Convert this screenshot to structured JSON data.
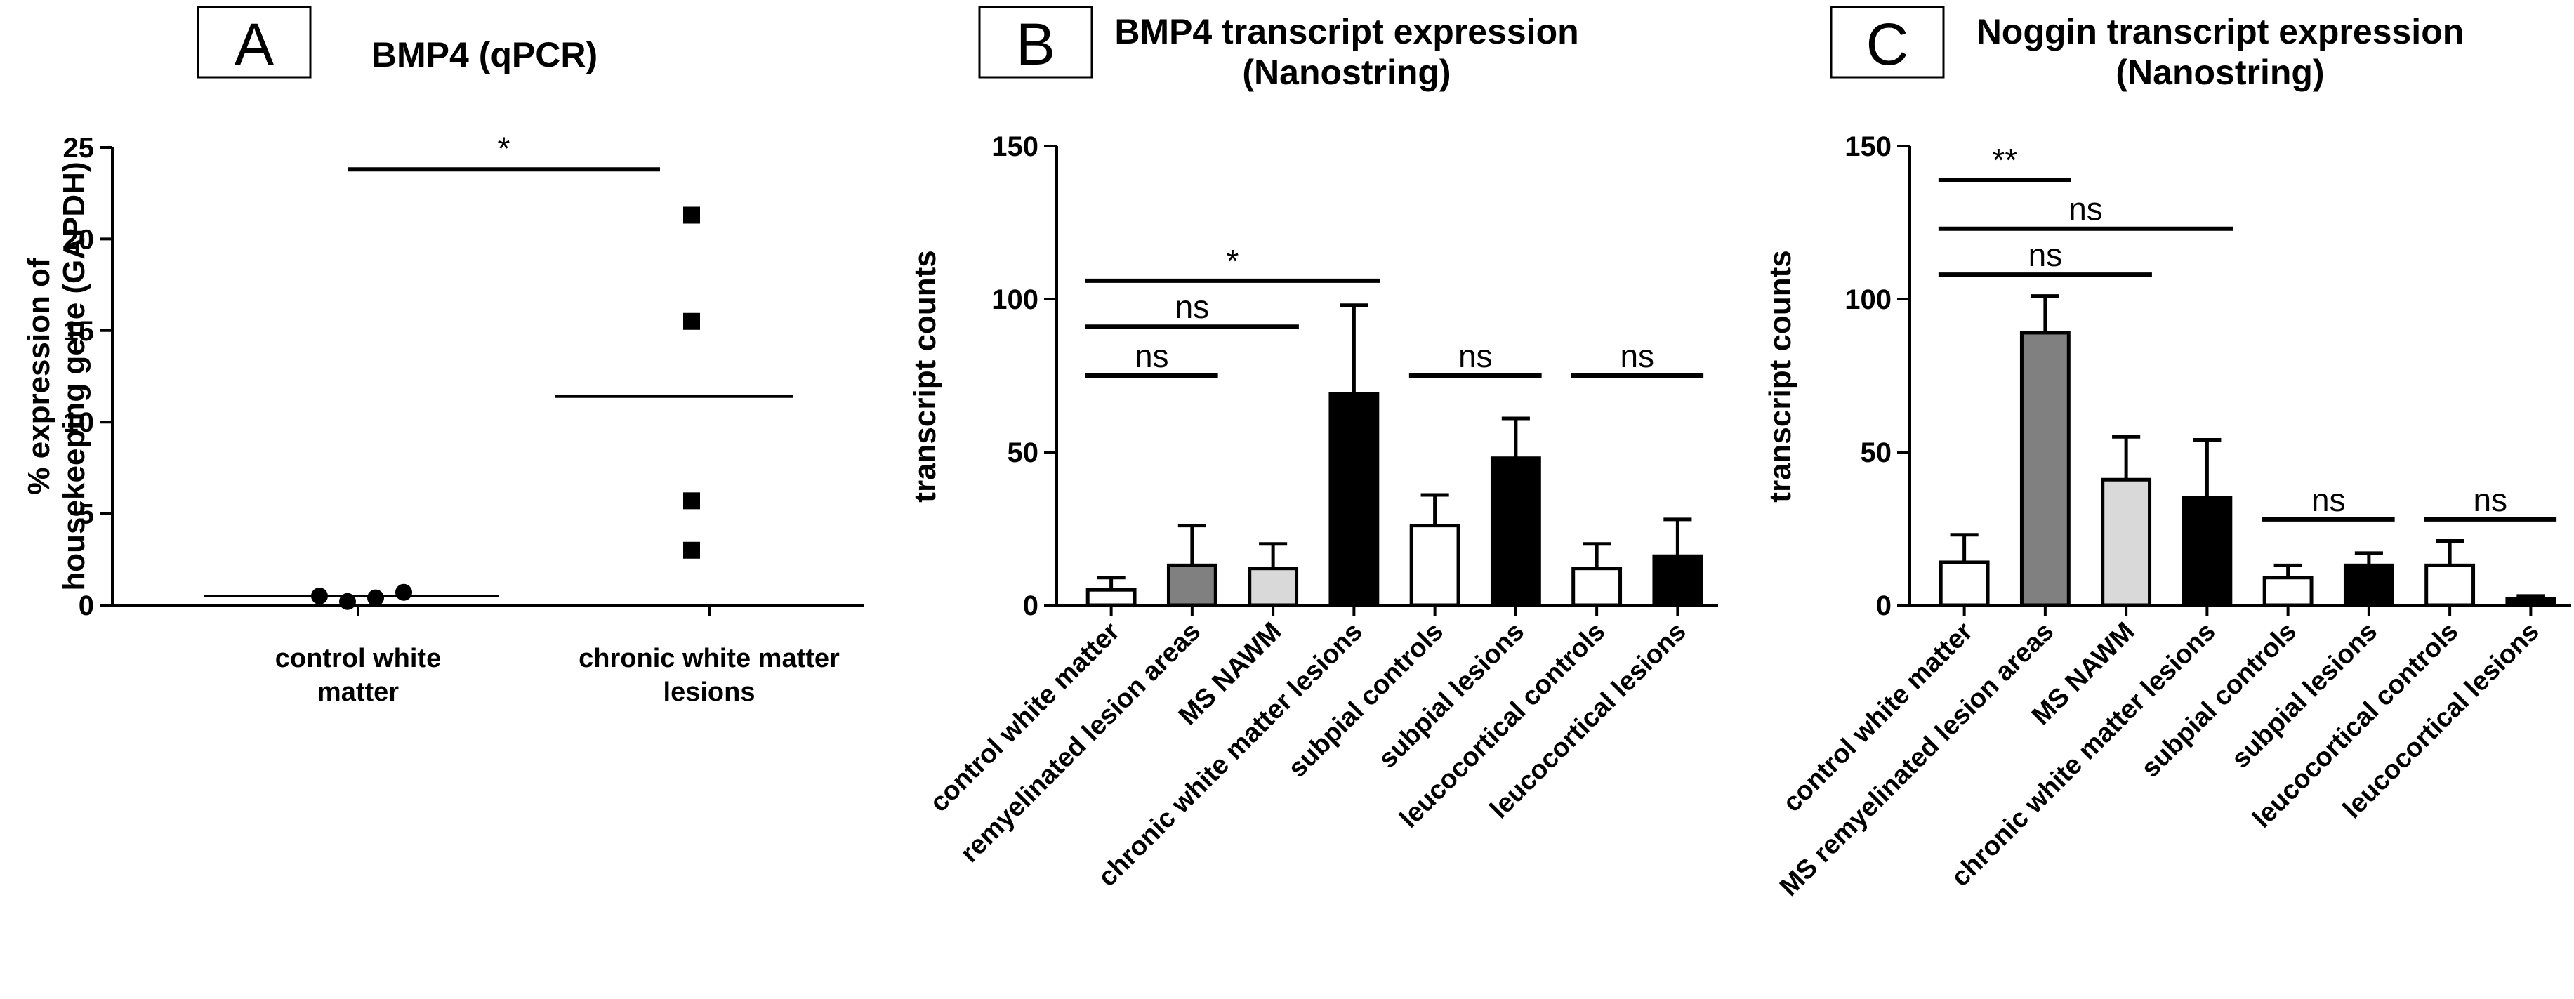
{
  "chart_data": [
    {
      "panel": "A",
      "type": "scatter",
      "title": "BMP4 (qPCR)",
      "ylabel": "% expression of housekeeping gene (GAPDH)",
      "ylabel_lines": [
        "% expression of",
        "housekeeping gene (GAPDH)"
      ],
      "ylim": [
        0,
        25
      ],
      "yticks": [
        0,
        5,
        10,
        15,
        20,
        25
      ],
      "categories": [
        "control white matter",
        "chronic white matter lesions"
      ],
      "category_lines": [
        [
          "control white",
          "matter"
        ],
        [
          "chronic white matter",
          "lesions"
        ]
      ],
      "series": [
        {
          "category": "control white matter",
          "marker": "circle",
          "values": [
            0.5,
            0.2,
            0.4,
            0.7
          ],
          "mean": 0.5
        },
        {
          "category": "chronic white matter lesions",
          "marker": "square",
          "values": [
            21.3,
            15.5,
            5.7,
            3.0
          ],
          "mean": 11.4
        }
      ],
      "significance": [
        {
          "from": 0,
          "to": 1,
          "label": "*",
          "y": 23.8
        }
      ]
    },
    {
      "panel": "B",
      "type": "bar",
      "title": "BMP4 transcript expression (Nanostring)",
      "title_lines": [
        "BMP4 transcript expression",
        "(Nanostring)"
      ],
      "ylabel": "transcript counts",
      "ylim": [
        0,
        150
      ],
      "yticks": [
        0,
        50,
        100,
        150
      ],
      "categories": [
        "control white matter",
        "remyelinated lesion areas",
        "MS NAWM",
        "chronic white matter lesions",
        "subpial controls",
        "subpial lesions",
        "leucocortical controls",
        "leucocortical lesions"
      ],
      "values": [
        5,
        13,
        12,
        69,
        26,
        48,
        12,
        16
      ],
      "errors": [
        4,
        13,
        8,
        29,
        10,
        13,
        8,
        12
      ],
      "fills": [
        "#ffffff",
        "#808080",
        "#d9d9d9",
        "#000000",
        "#ffffff",
        "#000000",
        "#ffffff",
        "#000000"
      ],
      "significance": [
        {
          "from": 0,
          "to": 3,
          "label": "*",
          "y": 106
        },
        {
          "from": 0,
          "to": 2,
          "label": "ns",
          "y": 91
        },
        {
          "from": 0,
          "to": 1,
          "label": "ns",
          "y": 75
        },
        {
          "from": 4,
          "to": 5,
          "label": "ns",
          "y": 75
        },
        {
          "from": 6,
          "to": 7,
          "label": "ns",
          "y": 75
        }
      ]
    },
    {
      "panel": "C",
      "type": "bar",
      "title": "Noggin transcript expression (Nanostring)",
      "title_lines": [
        "Noggin transcript expression",
        "(Nanostring)"
      ],
      "ylabel": "transcript counts",
      "ylim": [
        0,
        150
      ],
      "yticks": [
        0,
        50,
        100,
        150
      ],
      "categories": [
        "control white matter",
        "MS remyelinated lesion areas",
        "MS NAWM",
        "chronic white matter lesions",
        "subpial controls",
        "subpial lesions",
        "leucocortical controls",
        "leucocortical lesions"
      ],
      "values": [
        14,
        89,
        41,
        35,
        9,
        13,
        13,
        2
      ],
      "errors": [
        9,
        12,
        14,
        19,
        4,
        4,
        8,
        1
      ],
      "fills": [
        "#ffffff",
        "#808080",
        "#d9d9d9",
        "#000000",
        "#ffffff",
        "#000000",
        "#ffffff",
        "#000000"
      ],
      "significance": [
        {
          "from": 0,
          "to": 1,
          "label": "**",
          "y": 139
        },
        {
          "from": 0,
          "to": 3,
          "label": "ns",
          "y": 123
        },
        {
          "from": 0,
          "to": 2,
          "label": "ns",
          "y": 108
        },
        {
          "from": 4,
          "to": 5,
          "label": "ns",
          "y": 28
        },
        {
          "from": 6,
          "to": 7,
          "label": "ns",
          "y": 28
        }
      ]
    }
  ]
}
